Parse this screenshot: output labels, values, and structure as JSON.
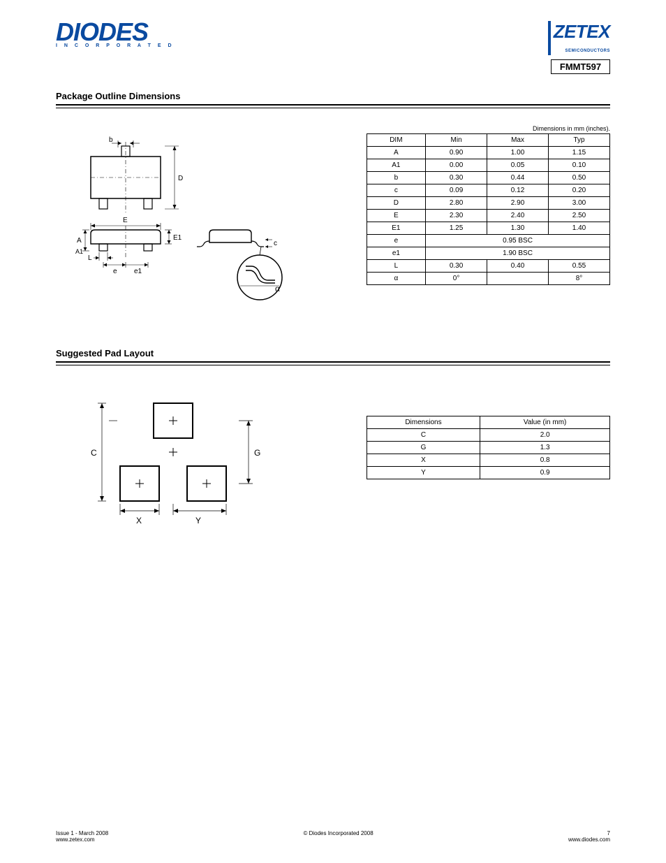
{
  "colors": {
    "brand_blue": "#0a4aa0",
    "text": "#000000",
    "bg": "#ffffff",
    "line": "#000000"
  },
  "header": {
    "diodes_logo": "DIODES",
    "diodes_sub": "I N C O R P O R A T E D",
    "zetex_logo": "ZETEX",
    "zetex_sub": "SEMICONDUCTORS",
    "part_number": "FMMT597"
  },
  "section1": {
    "title": "Package Outline Dimensions",
    "unit_caption": "Dimensions in mm (inches).",
    "drawing": {
      "labels": {
        "E": "E",
        "D": "D",
        "E1": "E1",
        "A": "A",
        "A1": "A1",
        "L": "L",
        "b": "b",
        "c": "c",
        "e": "e",
        "e1": "e1",
        "alpha": "α"
      }
    },
    "table": {
      "columns": [
        "DIM",
        "Min",
        "Max",
        "Typ"
      ],
      "rows": [
        [
          "A",
          "0.90",
          "1.00",
          "1.15"
        ],
        [
          "A1",
          "0.00",
          "0.05",
          "0.10"
        ],
        [
          "b",
          "0.30",
          "0.44",
          "0.50"
        ],
        [
          "c",
          "0.09",
          "0.12",
          "0.20"
        ],
        [
          "D",
          "2.80",
          "2.90",
          "3.00"
        ],
        [
          "E",
          "2.30",
          "2.40",
          "2.50"
        ],
        [
          "E1",
          "1.25",
          "1.30",
          "1.40"
        ],
        [
          "e",
          "0.95 BSC",
          "",
          ""
        ],
        [
          "e1",
          "1.90 BSC",
          "",
          ""
        ],
        [
          "L",
          "0.30",
          "0.40",
          "0.55"
        ],
        [
          "α",
          "0°",
          "",
          "8°"
        ]
      ]
    }
  },
  "section2": {
    "title": "Suggested Pad Layout",
    "drawing": {
      "labels": {
        "C": "C",
        "G": "G",
        "X": "X",
        "Y": "Y"
      }
    },
    "table": {
      "columns": [
        "Dimensions",
        "Value (in mm)"
      ],
      "rows": [
        [
          "C",
          "2.0"
        ],
        [
          "G",
          "1.3"
        ],
        [
          "X",
          "0.8"
        ],
        [
          "Y",
          "0.9"
        ]
      ]
    }
  },
  "footer": {
    "left_line1": "Issue 1 - March 2008",
    "left_line2": "www.zetex.com",
    "center": "© Diodes Incorporated 2008",
    "right_page": "7",
    "right_url": "www.diodes.com"
  }
}
